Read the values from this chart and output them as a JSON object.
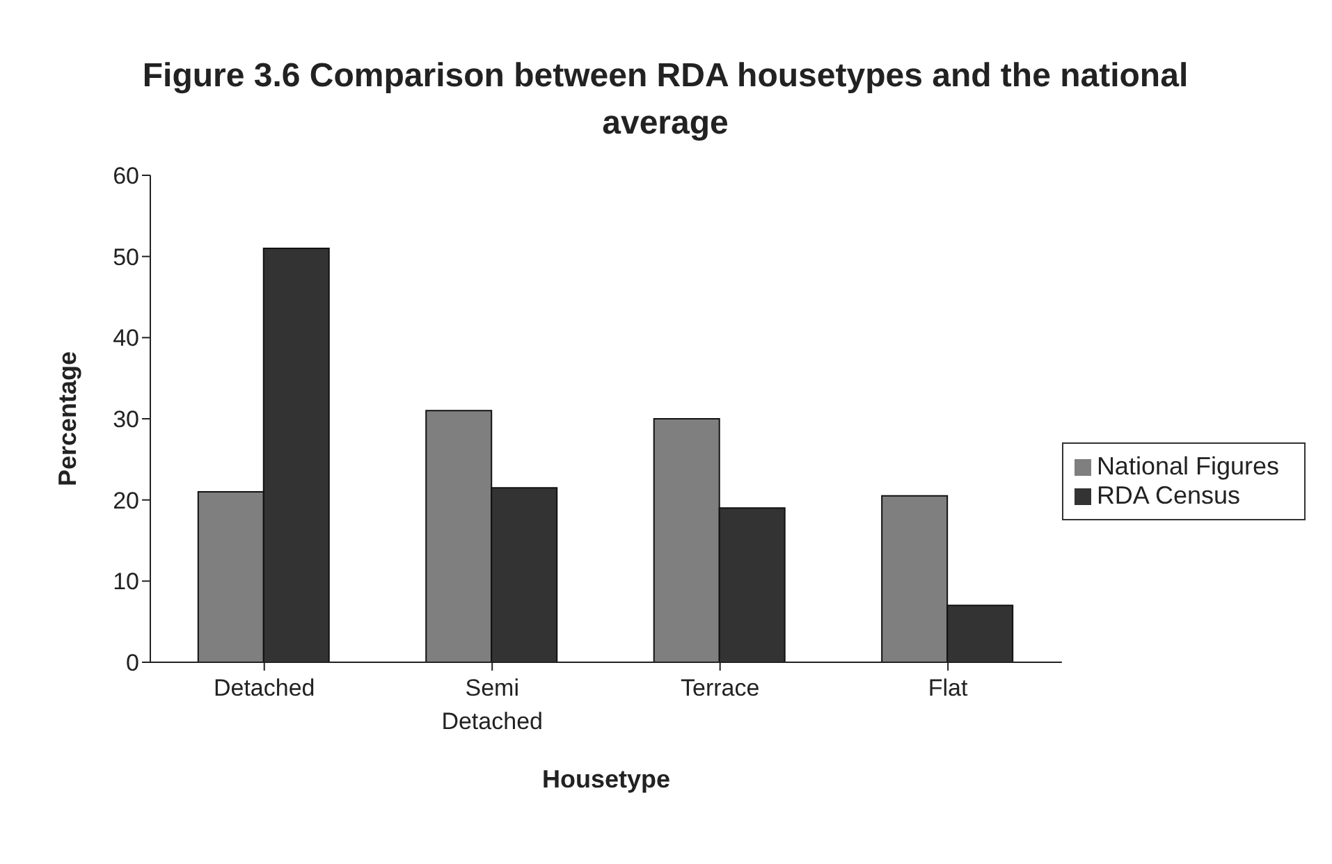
{
  "chart_data": {
    "type": "bar",
    "title": "Figure 3.6  Comparison between RDA housetypes and the national average",
    "xlabel": "Housetype",
    "ylabel": "Percentage",
    "categories": [
      "Detached",
      "Semi Detached",
      "Terrace",
      "Flat"
    ],
    "series": [
      {
        "name": "National Figures",
        "color": "#7f7f7f",
        "values": [
          21,
          31,
          30,
          20.5
        ]
      },
      {
        "name": "RDA Census",
        "color": "#333333",
        "values": [
          51,
          21.5,
          19,
          7
        ]
      }
    ],
    "ylim": [
      0,
      60
    ],
    "yticks": [
      0,
      10,
      20,
      30,
      40,
      50,
      60
    ],
    "grid": false,
    "legend": "right"
  }
}
